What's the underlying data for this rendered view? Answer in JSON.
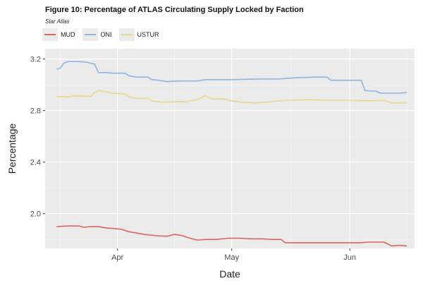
{
  "title": "Figure 10: Percentage of ATLAS Circulating Supply Locked by Faction",
  "subtitle": "Star Atlas",
  "chart_data": {
    "type": "line",
    "title": "Figure 10: Percentage of ATLAS Circulating Supply Locked by Faction",
    "subtitle": "Star Atlas",
    "xlabel": "Date",
    "ylabel": "Percentage",
    "x_type": "date",
    "xlim": [
      "2022-03-13",
      "2022-06-18"
    ],
    "ylim": [
      1.73,
      3.28
    ],
    "x_ticks": [
      {
        "date": "2022-04-01",
        "label": "Apr"
      },
      {
        "date": "2022-05-01",
        "label": "May"
      },
      {
        "date": "2022-06-01",
        "label": "Jun"
      }
    ],
    "y_ticks": [
      {
        "value": 2.0,
        "label": "2.0"
      },
      {
        "value": 2.4,
        "label": "2.4"
      },
      {
        "value": 2.8,
        "label": "2.8"
      },
      {
        "value": 3.2,
        "label": "3.2"
      }
    ],
    "grid": true,
    "panel_background": "#ebebeb",
    "legend_position": "top-left",
    "series": [
      {
        "name": "MUD",
        "color": "#d6685e",
        "points": [
          [
            "2022-03-16",
            1.9
          ],
          [
            "2022-03-19",
            1.905
          ],
          [
            "2022-03-22",
            1.905
          ],
          [
            "2022-03-23",
            1.895
          ],
          [
            "2022-03-25",
            1.9
          ],
          [
            "2022-03-27",
            1.9
          ],
          [
            "2022-03-29",
            1.89
          ],
          [
            "2022-03-31",
            1.885
          ],
          [
            "2022-04-02",
            1.88
          ],
          [
            "2022-04-04",
            1.86
          ],
          [
            "2022-04-06",
            1.85
          ],
          [
            "2022-04-08",
            1.84
          ],
          [
            "2022-04-11",
            1.83
          ],
          [
            "2022-04-14",
            1.825
          ],
          [
            "2022-04-16",
            1.84
          ],
          [
            "2022-04-18",
            1.83
          ],
          [
            "2022-04-20",
            1.81
          ],
          [
            "2022-04-22",
            1.795
          ],
          [
            "2022-04-24",
            1.8
          ],
          [
            "2022-04-27",
            1.8
          ],
          [
            "2022-04-30",
            1.81
          ],
          [
            "2022-05-03",
            1.81
          ],
          [
            "2022-05-06",
            1.805
          ],
          [
            "2022-05-09",
            1.805
          ],
          [
            "2022-05-12",
            1.8
          ],
          [
            "2022-05-14",
            1.8
          ],
          [
            "2022-05-15",
            1.775
          ],
          [
            "2022-05-20",
            1.775
          ],
          [
            "2022-05-25",
            1.775
          ],
          [
            "2022-05-30",
            1.775
          ],
          [
            "2022-06-04",
            1.775
          ],
          [
            "2022-06-06",
            1.78
          ],
          [
            "2022-06-10",
            1.78
          ],
          [
            "2022-06-12",
            1.75
          ],
          [
            "2022-06-14",
            1.755
          ],
          [
            "2022-06-16",
            1.75
          ]
        ]
      },
      {
        "name": "ONI",
        "color": "#8db6e0",
        "points": [
          [
            "2022-03-16",
            3.12
          ],
          [
            "2022-03-17",
            3.13
          ],
          [
            "2022-03-18",
            3.17
          ],
          [
            "2022-03-19",
            3.18
          ],
          [
            "2022-03-22",
            3.18
          ],
          [
            "2022-03-24",
            3.175
          ],
          [
            "2022-03-26",
            3.16
          ],
          [
            "2022-03-27",
            3.095
          ],
          [
            "2022-03-29",
            3.095
          ],
          [
            "2022-03-31",
            3.09
          ],
          [
            "2022-04-03",
            3.09
          ],
          [
            "2022-04-04",
            3.07
          ],
          [
            "2022-04-06",
            3.06
          ],
          [
            "2022-04-09",
            3.06
          ],
          [
            "2022-04-10",
            3.04
          ],
          [
            "2022-04-12",
            3.035
          ],
          [
            "2022-04-14",
            3.025
          ],
          [
            "2022-04-17",
            3.03
          ],
          [
            "2022-04-22",
            3.03
          ],
          [
            "2022-04-24",
            3.04
          ],
          [
            "2022-05-01",
            3.04
          ],
          [
            "2022-05-08",
            3.045
          ],
          [
            "2022-05-13",
            3.045
          ],
          [
            "2022-05-18",
            3.055
          ],
          [
            "2022-05-23",
            3.06
          ],
          [
            "2022-05-26",
            3.06
          ],
          [
            "2022-05-27",
            3.035
          ],
          [
            "2022-06-04",
            3.035
          ],
          [
            "2022-06-05",
            2.955
          ],
          [
            "2022-06-08",
            2.95
          ],
          [
            "2022-06-09",
            2.935
          ],
          [
            "2022-06-14",
            2.935
          ],
          [
            "2022-06-16",
            2.94
          ]
        ]
      },
      {
        "name": "USTUR",
        "color": "#e8d68a",
        "points": [
          [
            "2022-03-16",
            2.91
          ],
          [
            "2022-03-19",
            2.905
          ],
          [
            "2022-03-21",
            2.915
          ],
          [
            "2022-03-25",
            2.91
          ],
          [
            "2022-03-26",
            2.94
          ],
          [
            "2022-03-27",
            2.955
          ],
          [
            "2022-03-29",
            2.945
          ],
          [
            "2022-03-31",
            2.935
          ],
          [
            "2022-04-03",
            2.93
          ],
          [
            "2022-04-04",
            2.905
          ],
          [
            "2022-04-06",
            2.895
          ],
          [
            "2022-04-09",
            2.895
          ],
          [
            "2022-04-10",
            2.875
          ],
          [
            "2022-04-13",
            2.865
          ],
          [
            "2022-04-19",
            2.87
          ],
          [
            "2022-04-22",
            2.885
          ],
          [
            "2022-04-24",
            2.915
          ],
          [
            "2022-04-26",
            2.89
          ],
          [
            "2022-04-29",
            2.89
          ],
          [
            "2022-05-01",
            2.875
          ],
          [
            "2022-05-04",
            2.865
          ],
          [
            "2022-05-07",
            2.86
          ],
          [
            "2022-05-10",
            2.865
          ],
          [
            "2022-05-13",
            2.875
          ],
          [
            "2022-05-16",
            2.88
          ],
          [
            "2022-05-21",
            2.885
          ],
          [
            "2022-05-26",
            2.88
          ],
          [
            "2022-06-01",
            2.88
          ],
          [
            "2022-06-06",
            2.875
          ],
          [
            "2022-06-10",
            2.88
          ],
          [
            "2022-06-12",
            2.86
          ],
          [
            "2022-06-16",
            2.86
          ]
        ]
      }
    ]
  }
}
